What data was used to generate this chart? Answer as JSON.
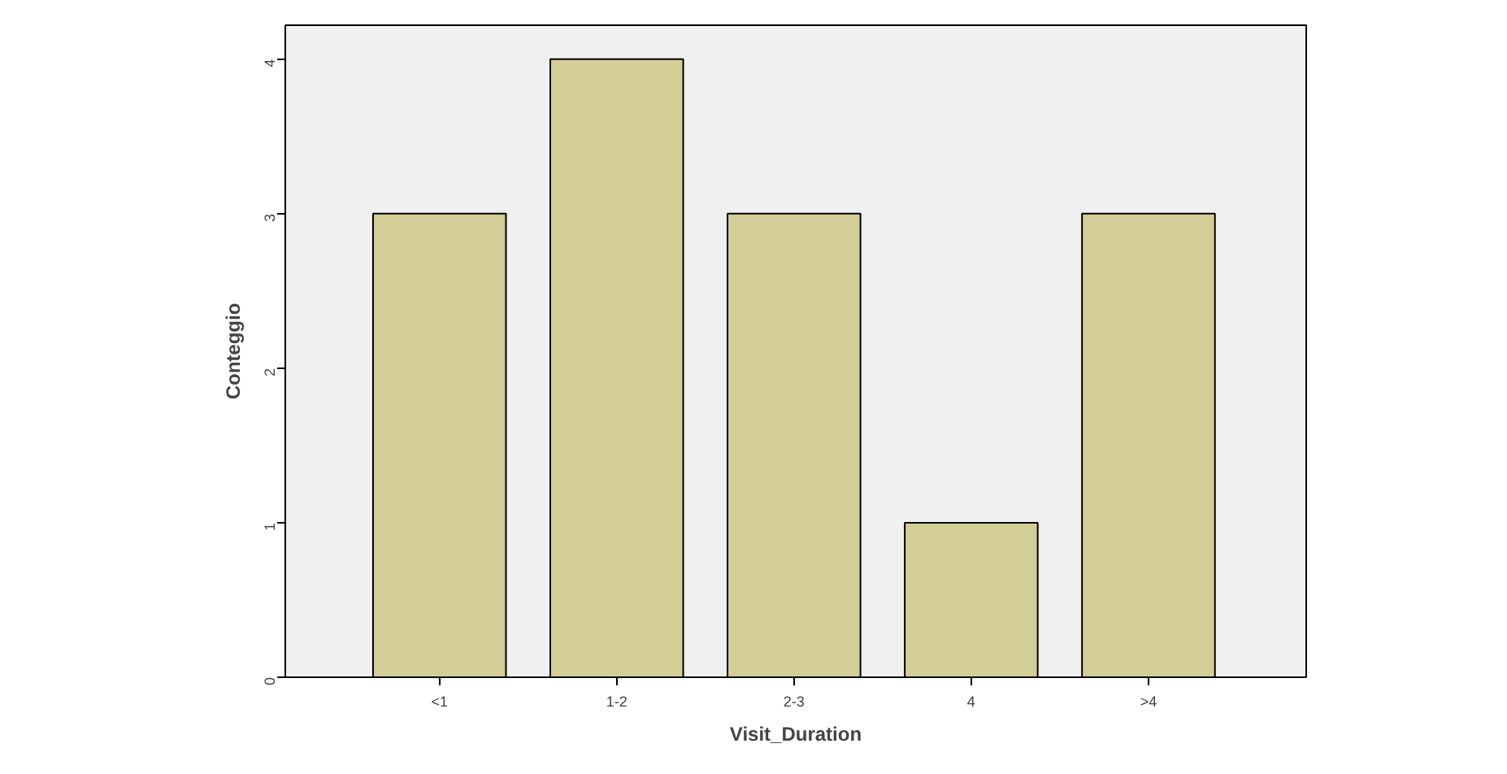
{
  "chart_data": {
    "type": "bar",
    "xlabel": "Visit_Duration",
    "ylabel": "Conteggio",
    "categories": [
      "<1",
      "1-2",
      "2-3",
      "4",
      ">4"
    ],
    "values": [
      3,
      4,
      3,
      1,
      3
    ],
    "color": "#d3ce97",
    "ylim": [
      0,
      4.22
    ],
    "yticks": [
      0,
      1,
      2,
      3,
      4
    ],
    "grid": false
  }
}
